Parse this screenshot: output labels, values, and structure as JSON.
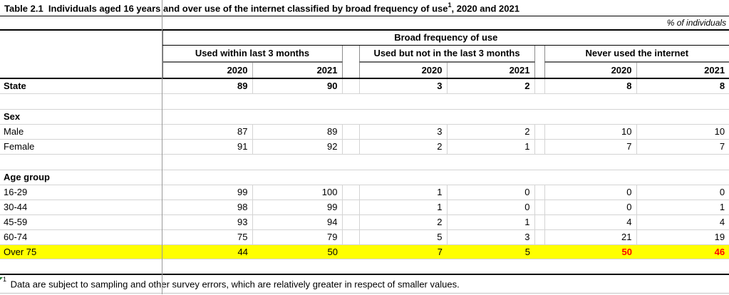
{
  "chart_data": {
    "type": "table",
    "title_main": "Table 2.1  Individuals aged 16 years and over use of the internet classified by broad frequency of use",
    "title_sup": "1",
    "title_tail": ", 2020 and 2021",
    "unit_label": "% of individuals",
    "column_group_header": "Broad frequency of use",
    "column_groups": [
      {
        "label": "Used within last 3 months"
      },
      {
        "label": "Used but not in the last 3 months"
      },
      {
        "label": "Never used the internet"
      }
    ],
    "years": [
      "2020",
      "2021"
    ],
    "rows": [
      {
        "type": "data",
        "label": "State",
        "bold": true,
        "values": [
          89,
          90,
          3,
          2,
          8,
          8
        ]
      },
      {
        "type": "spacer"
      },
      {
        "type": "section",
        "label": "Sex"
      },
      {
        "type": "data",
        "label": "Male",
        "values": [
          87,
          89,
          3,
          2,
          10,
          10
        ]
      },
      {
        "type": "data",
        "label": "Female",
        "values": [
          91,
          92,
          2,
          1,
          7,
          7
        ]
      },
      {
        "type": "spacer"
      },
      {
        "type": "section",
        "label": "Age group"
      },
      {
        "type": "data",
        "label": "16-29",
        "values": [
          99,
          100,
          1,
          0,
          0,
          0
        ]
      },
      {
        "type": "data",
        "label": "30-44",
        "values": [
          98,
          99,
          1,
          0,
          0,
          1
        ]
      },
      {
        "type": "data",
        "label": "45-59",
        "values": [
          93,
          94,
          2,
          1,
          4,
          4
        ]
      },
      {
        "type": "data",
        "label": "60-74",
        "values": [
          75,
          79,
          5,
          3,
          21,
          19
        ]
      },
      {
        "type": "data",
        "label": "Over 75",
        "highlight": true,
        "values": [
          44,
          50,
          7,
          5,
          50,
          46
        ],
        "red_value_indices": [
          4,
          5
        ]
      },
      {
        "type": "spacer"
      }
    ],
    "footnote_sup": "1",
    "footnote_text": " Data are subject to sampling and other survey errors, which are relatively greater in respect of smaller values.",
    "colors": {
      "highlight_row": "#ffff00",
      "alert_value_text": "#ff0000",
      "grid_light": "#d4d4d4",
      "grid_dark": "#000000"
    }
  }
}
